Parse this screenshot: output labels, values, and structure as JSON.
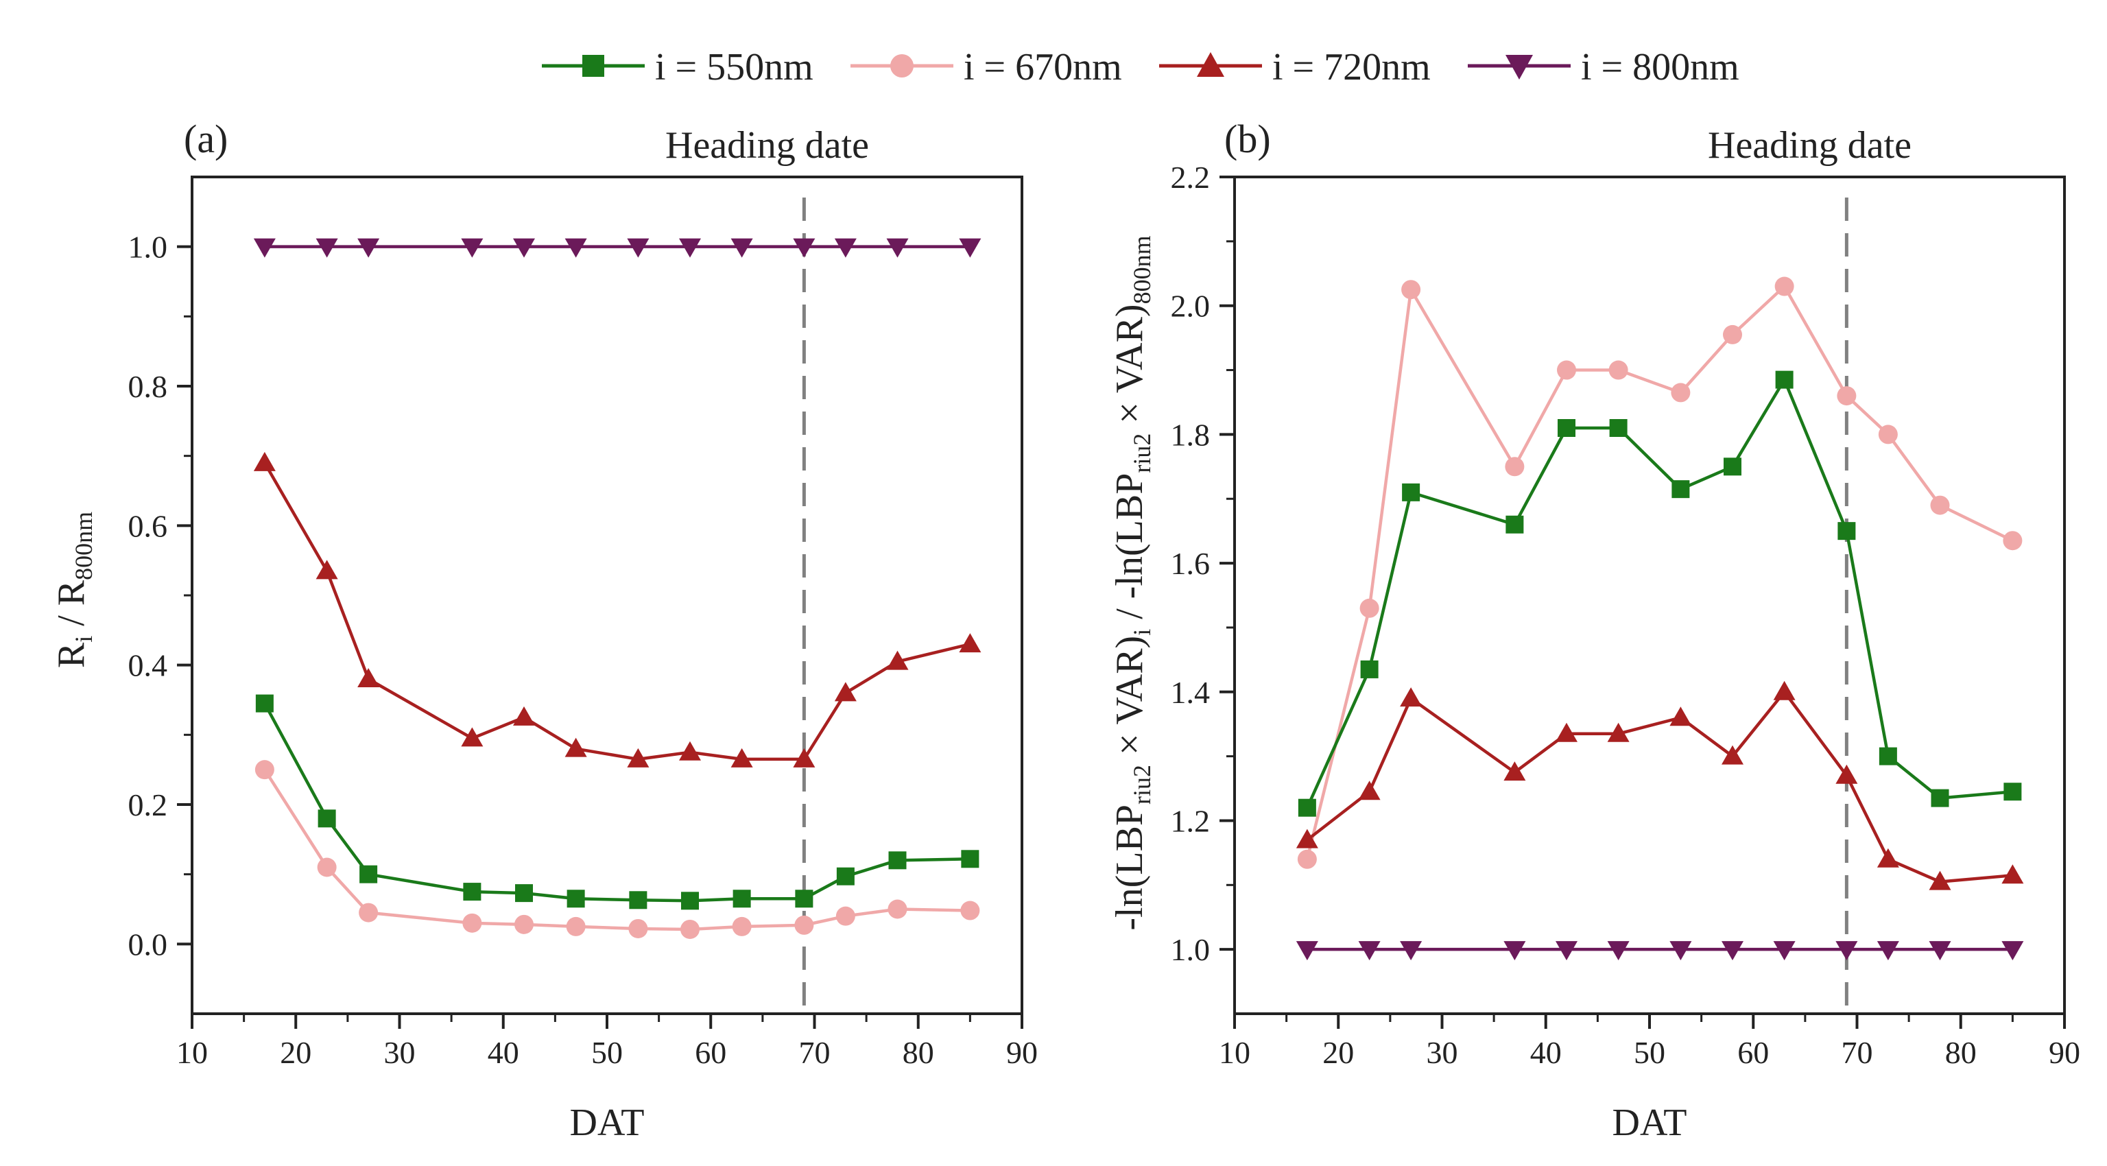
{
  "legend": [
    {
      "label": "i = 550nm",
      "color": "#1a7a1a",
      "marker": "square"
    },
    {
      "label": "i = 670nm",
      "color": "#f0a8a8",
      "marker": "circle"
    },
    {
      "label": "i = 720nm",
      "color": "#a82020",
      "marker": "triangle-up"
    },
    {
      "label": "i = 800nm",
      "color": "#6b1a5a",
      "marker": "triangle-down"
    }
  ],
  "chart_data": [
    {
      "type": "line",
      "panel_label": "(a)",
      "annotation": "Heading date",
      "heading_x": 69,
      "xlabel": "DAT",
      "ylabel": {
        "main": "R",
        "sub_i": "i",
        "sep": " / R",
        "sub_ref": "800nm"
      },
      "xlim": [
        10,
        90
      ],
      "ylim": [
        -0.1,
        1.1
      ],
      "xticks": [
        10,
        20,
        30,
        40,
        50,
        60,
        70,
        80,
        90
      ],
      "yticks": [
        0.0,
        0.2,
        0.4,
        0.6,
        0.8,
        1.0
      ],
      "ytick_labels": [
        "0.0",
        "0.2",
        "0.4",
        "0.6",
        "0.8",
        "1.0"
      ],
      "x": [
        17,
        23,
        27,
        37,
        42,
        47,
        53,
        58,
        63,
        69,
        73,
        78,
        85
      ],
      "series": [
        {
          "name": "i = 550nm",
          "values": [
            0.345,
            0.18,
            0.1,
            0.075,
            0.073,
            0.065,
            0.063,
            0.062,
            0.065,
            0.065,
            0.097,
            0.12,
            0.122
          ]
        },
        {
          "name": "i = 670nm",
          "values": [
            0.25,
            0.11,
            0.045,
            0.03,
            0.028,
            0.025,
            0.022,
            0.021,
            0.025,
            0.027,
            0.04,
            0.05,
            0.048
          ]
        },
        {
          "name": "i = 720nm",
          "values": [
            0.69,
            0.535,
            0.38,
            0.295,
            0.325,
            0.28,
            0.265,
            0.275,
            0.265,
            0.265,
            0.36,
            0.405,
            0.43
          ]
        },
        {
          "name": "i = 800nm",
          "values": [
            1.0,
            1.0,
            1.0,
            1.0,
            1.0,
            1.0,
            1.0,
            1.0,
            1.0,
            1.0,
            1.0,
            1.0,
            1.0
          ]
        }
      ]
    },
    {
      "type": "line",
      "panel_label": "(b)",
      "annotation": "Heading date",
      "heading_x": 69,
      "xlabel": "DAT",
      "ylabel": {
        "p1": "-ln(LBP",
        "s1": "riu2",
        "p2": " × VAR)",
        "s2": "i",
        "p3": " / -ln(LBP",
        "s3": "riu2",
        "p4": " × VAR)",
        "s4": "800nm"
      },
      "xlim": [
        10,
        90
      ],
      "ylim": [
        0.9,
        2.2
      ],
      "xticks": [
        10,
        20,
        30,
        40,
        50,
        60,
        70,
        80,
        90
      ],
      "yticks": [
        1.0,
        1.2,
        1.4,
        1.6,
        1.8,
        2.0,
        2.2
      ],
      "ytick_labels": [
        "1.0",
        "1.2",
        "1.4",
        "1.6",
        "1.8",
        "2.0",
        "2.2"
      ],
      "x": [
        17,
        23,
        27,
        37,
        42,
        47,
        53,
        58,
        63,
        69,
        73,
        78,
        85
      ],
      "series": [
        {
          "name": "i = 550nm",
          "values": [
            1.22,
            1.435,
            1.71,
            1.66,
            1.81,
            1.81,
            1.715,
            1.75,
            1.885,
            1.65,
            1.3,
            1.235,
            1.245
          ]
        },
        {
          "name": "i = 670nm",
          "values": [
            1.14,
            1.53,
            2.025,
            1.75,
            1.9,
            1.9,
            1.865,
            1.955,
            2.03,
            1.86,
            1.8,
            1.69,
            1.635
          ]
        },
        {
          "name": "i = 720nm",
          "values": [
            1.17,
            1.245,
            1.39,
            1.275,
            1.335,
            1.335,
            1.36,
            1.3,
            1.4,
            1.27,
            1.14,
            1.105,
            1.115
          ]
        },
        {
          "name": "i = 800nm",
          "values": [
            1.0,
            1.0,
            1.0,
            1.0,
            1.0,
            1.0,
            1.0,
            1.0,
            1.0,
            1.0,
            1.0,
            1.0,
            1.0
          ]
        }
      ]
    }
  ]
}
